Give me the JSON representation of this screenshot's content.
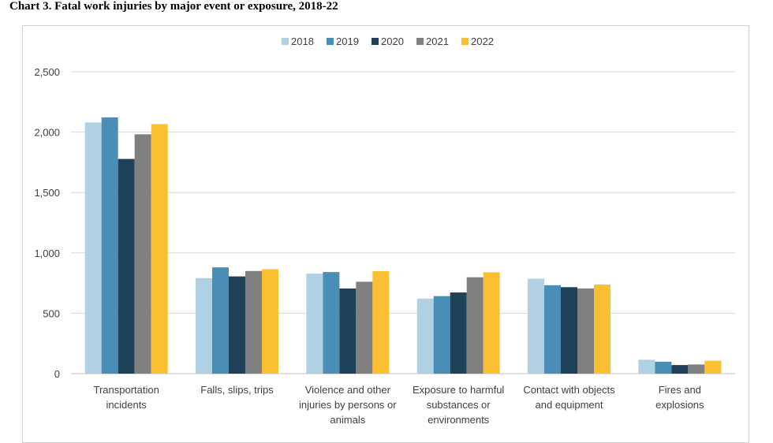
{
  "title": "Chart 3. Fatal work injuries by major event or exposure, 2018-22",
  "chart_data": {
    "type": "bar",
    "title": "Chart 3. Fatal work injuries by major event or exposure, 2018-22",
    "xlabel": "",
    "ylabel": "",
    "ylim": [
      0,
      2500
    ],
    "yticks": [
      0,
      500,
      1000,
      1500,
      2000,
      2500
    ],
    "ytick_labels": [
      "0",
      "500",
      "1,000",
      "1,500",
      "2,000",
      "2,500"
    ],
    "grid": true,
    "legend_position": "top",
    "categories": [
      [
        "Transportation",
        "incidents"
      ],
      [
        "Falls, slips, trips"
      ],
      [
        "Violence and other",
        "injuries by persons or",
        "animals"
      ],
      [
        "Exposure to harmful",
        "substances or",
        "environments"
      ],
      [
        "Contact with objects",
        "and equipment"
      ],
      [
        "Fires and",
        "explosions"
      ]
    ],
    "series": [
      {
        "name": "2018",
        "color": "#b0d0e3",
        "values": [
          2080,
          791,
          828,
          621,
          786,
          115
        ]
      },
      {
        "name": "2019",
        "color": "#4a8db7",
        "values": [
          2122,
          880,
          841,
          642,
          732,
          99
        ]
      },
      {
        "name": "2020",
        "color": "#1f4259",
        "values": [
          1778,
          805,
          705,
          672,
          716,
          71
        ]
      },
      {
        "name": "2021",
        "color": "#808080",
        "values": [
          1982,
          850,
          761,
          798,
          705,
          76
        ]
      },
      {
        "name": "2022",
        "color": "#fbbf32",
        "values": [
          2066,
          865,
          849,
          839,
          738,
          107
        ]
      }
    ]
  }
}
